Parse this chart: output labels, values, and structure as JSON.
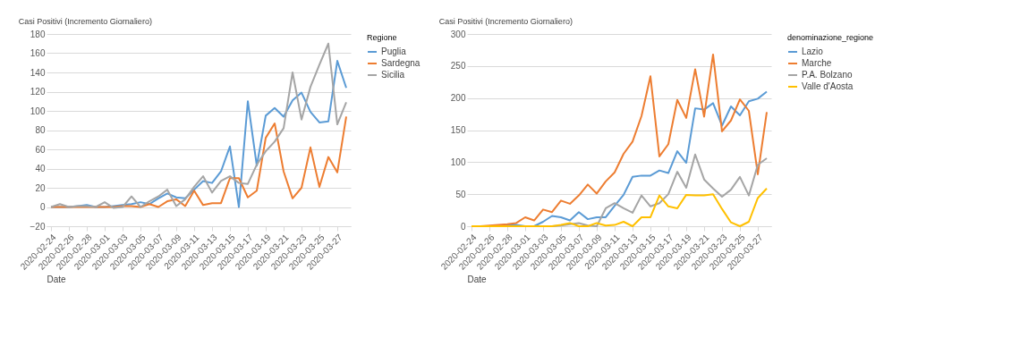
{
  "chart_data": [
    {
      "type": "line",
      "title": "Casi Positivi (Incremento Giornaliero)",
      "xlabel": "Date",
      "legend_title": "Regione",
      "legend": "right",
      "grid": "y",
      "x": [
        "2020-02-24",
        "2020-02-25",
        "2020-02-26",
        "2020-02-27",
        "2020-02-28",
        "2020-02-29",
        "2020-03-01",
        "2020-03-02",
        "2020-03-03",
        "2020-03-04",
        "2020-03-05",
        "2020-03-06",
        "2020-03-07",
        "2020-03-08",
        "2020-03-09",
        "2020-03-10",
        "2020-03-11",
        "2020-03-12",
        "2020-03-13",
        "2020-03-14",
        "2020-03-15",
        "2020-03-16",
        "2020-03-17",
        "2020-03-18",
        "2020-03-19",
        "2020-03-20",
        "2020-03-21",
        "2020-03-22",
        "2020-03-23",
        "2020-03-24",
        "2020-03-25",
        "2020-03-26",
        "2020-03-27",
        "2020-03-28"
      ],
      "xlim": [
        "2020-02-23T12:00",
        "2020-03-28T12:00"
      ],
      "xticks": [
        "2020-02-24",
        "2020-02-26",
        "2020-02-28",
        "2020-03-01",
        "2020-03-03",
        "2020-03-05",
        "2020-03-07",
        "2020-03-09",
        "2020-03-11",
        "2020-03-13",
        "2020-03-15",
        "2020-03-17",
        "2020-03-19",
        "2020-03-21",
        "2020-03-23",
        "2020-03-25",
        "2020-03-27"
      ],
      "ylim": [
        -20,
        180
      ],
      "yticks": [
        -20,
        0,
        20,
        40,
        60,
        80,
        100,
        120,
        140,
        160,
        180
      ],
      "series": [
        {
          "name": "Puglia",
          "color": "#5b9bd5",
          "values": [
            0,
            0,
            0,
            1,
            2,
            0,
            0,
            1,
            2,
            3,
            5,
            3,
            9,
            14,
            10,
            9,
            18,
            27,
            25,
            37,
            63,
            0,
            110,
            43,
            95,
            103,
            94,
            111,
            119,
            99,
            88,
            89,
            152,
            124
          ]
        },
        {
          "name": "Sardegna",
          "color": "#ed7d31",
          "values": [
            0,
            0,
            0,
            0,
            0,
            0,
            0,
            0,
            1,
            1,
            0,
            3,
            0,
            6,
            8,
            1,
            17,
            2,
            4,
            4,
            30,
            30,
            10,
            17,
            72,
            87,
            37,
            9,
            20,
            62,
            21,
            52,
            36,
            94
          ]
        },
        {
          "name": "Sicilia",
          "color": "#a5a5a5",
          "values": [
            0,
            3,
            0,
            1,
            1,
            0,
            5,
            -1,
            0,
            11,
            0,
            6,
            11,
            18,
            1,
            8,
            21,
            32,
            15,
            27,
            32,
            25,
            24,
            44,
            58,
            68,
            82,
            140,
            91,
            125,
            148,
            170,
            86,
            109
          ]
        }
      ]
    },
    {
      "type": "line",
      "title": "Casi Positivi (Incremento Giornaliero)",
      "xlabel": "Date",
      "legend_title": "denominazione_regione",
      "legend": "right",
      "grid": "y",
      "x": [
        "2020-02-24",
        "2020-02-25",
        "2020-02-26",
        "2020-02-27",
        "2020-02-28",
        "2020-02-29",
        "2020-03-01",
        "2020-03-02",
        "2020-03-03",
        "2020-03-04",
        "2020-03-05",
        "2020-03-06",
        "2020-03-07",
        "2020-03-08",
        "2020-03-09",
        "2020-03-10",
        "2020-03-11",
        "2020-03-12",
        "2020-03-13",
        "2020-03-14",
        "2020-03-15",
        "2020-03-16",
        "2020-03-17",
        "2020-03-18",
        "2020-03-19",
        "2020-03-20",
        "2020-03-21",
        "2020-03-22",
        "2020-03-23",
        "2020-03-24",
        "2020-03-25",
        "2020-03-26",
        "2020-03-27",
        "2020-03-28"
      ],
      "xlim": [
        "2020-02-23T12:00",
        "2020-03-28T12:00"
      ],
      "xticks": [
        "2020-02-24",
        "2020-02-26",
        "2020-02-28",
        "2020-03-01",
        "2020-03-03",
        "2020-03-05",
        "2020-03-07",
        "2020-03-09",
        "2020-03-11",
        "2020-03-13",
        "2020-03-15",
        "2020-03-17",
        "2020-03-19",
        "2020-03-21",
        "2020-03-23",
        "2020-03-25",
        "2020-03-27"
      ],
      "ylim": [
        0,
        300
      ],
      "yticks": [
        0,
        50,
        100,
        150,
        200,
        250,
        300
      ],
      "series": [
        {
          "name": "Lazio",
          "color": "#5b9bd5",
          "values": [
            null,
            null,
            null,
            0,
            2,
            2,
            0,
            0,
            7,
            16,
            14,
            9,
            22,
            11,
            14,
            14,
            32,
            49,
            77,
            79,
            79,
            87,
            83,
            117,
            99,
            184,
            182,
            192,
            157,
            187,
            173,
            195,
            199,
            210
          ]
        },
        {
          "name": "Marche",
          "color": "#ed7d31",
          "values": [
            0,
            0,
            1,
            2,
            3,
            5,
            14,
            9,
            26,
            22,
            40,
            35,
            48,
            65,
            51,
            70,
            84,
            113,
            132,
            172,
            234,
            109,
            128,
            197,
            169,
            245,
            171,
            268,
            148,
            165,
            198,
            180,
            81,
            178
          ]
        },
        {
          "name": "P.A. Bolzano",
          "color": "#a5a5a5",
          "values": [
            0,
            0,
            0,
            0,
            0,
            0,
            0,
            0,
            0,
            0,
            1,
            3,
            5,
            1,
            0,
            28,
            36,
            28,
            21,
            48,
            31,
            36,
            50,
            85,
            60,
            112,
            73,
            59,
            46,
            57,
            77,
            48,
            96,
            106
          ]
        },
        {
          "name": "Valle d'Aosta",
          "color": "#ffc000",
          "values": [
            0,
            0,
            0,
            0,
            0,
            0,
            0,
            0,
            0,
            0,
            2,
            5,
            0,
            0,
            5,
            1,
            2,
            7,
            0,
            14,
            14,
            48,
            31,
            28,
            49,
            48,
            48,
            50,
            27,
            6,
            0,
            7,
            44,
            59
          ]
        }
      ]
    }
  ]
}
